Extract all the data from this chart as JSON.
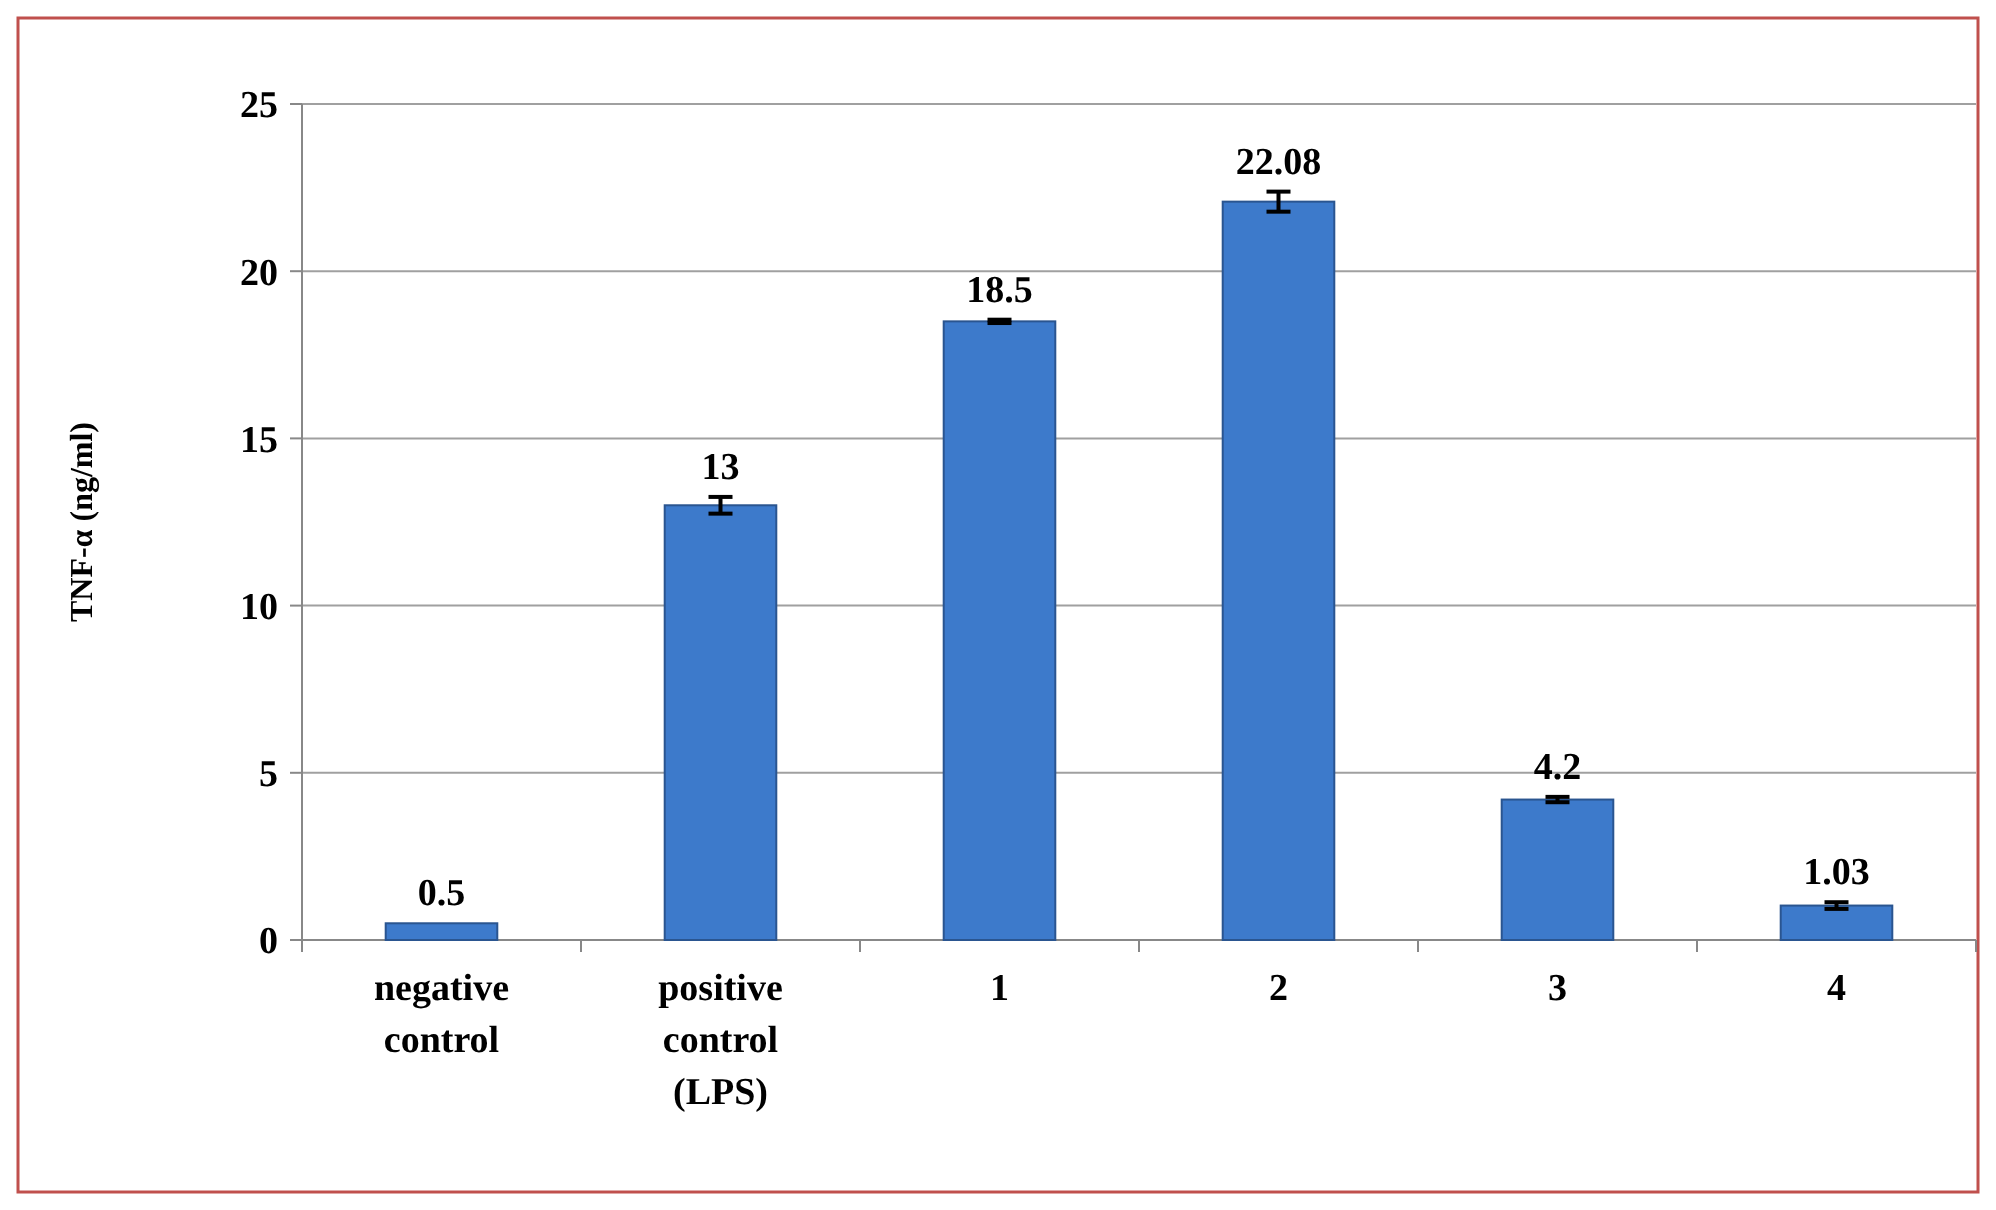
{
  "chart_data": {
    "type": "bar",
    "ylabel": "TNF-α (ng/ml)",
    "categories": [
      "negative control",
      "positive control (LPS)",
      "1",
      "2",
      "3",
      "4"
    ],
    "values": [
      0.5,
      13,
      18.5,
      22.08,
      4.2,
      1.03
    ],
    "errors": [
      null,
      0.25,
      0.05,
      0.3,
      0.08,
      0.1
    ],
    "color": "#3d7acb",
    "ylim": [
      0,
      25
    ],
    "yticks": [
      0,
      5,
      10,
      15,
      20,
      25
    ],
    "grid": "y",
    "data_labels": true
  }
}
